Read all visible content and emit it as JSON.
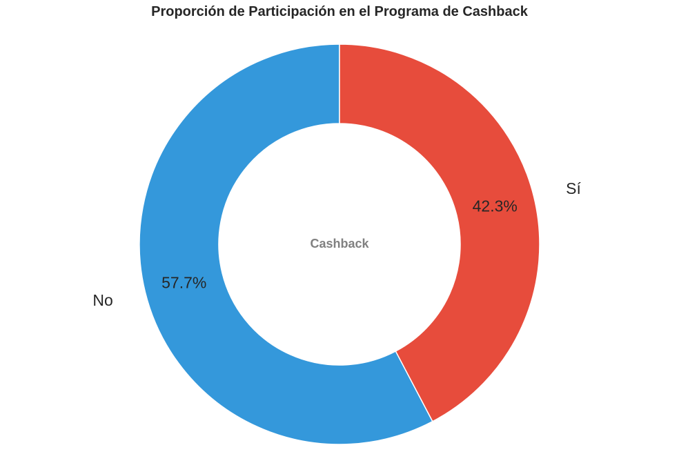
{
  "chart_data": {
    "type": "pie",
    "title": "Proporción de Participación en el Programa de Cashback",
    "center_text": "Cashback",
    "slices": [
      {
        "label": "No",
        "value": 57.7,
        "pct_label": "57.7%",
        "color": "#3498db"
      },
      {
        "label": "Sí",
        "value": 42.3,
        "pct_label": "42.3%",
        "color": "#e74c3c"
      }
    ],
    "donut": true,
    "start_angle_deg": 90,
    "direction": "counterclockwise",
    "legend": "none"
  }
}
